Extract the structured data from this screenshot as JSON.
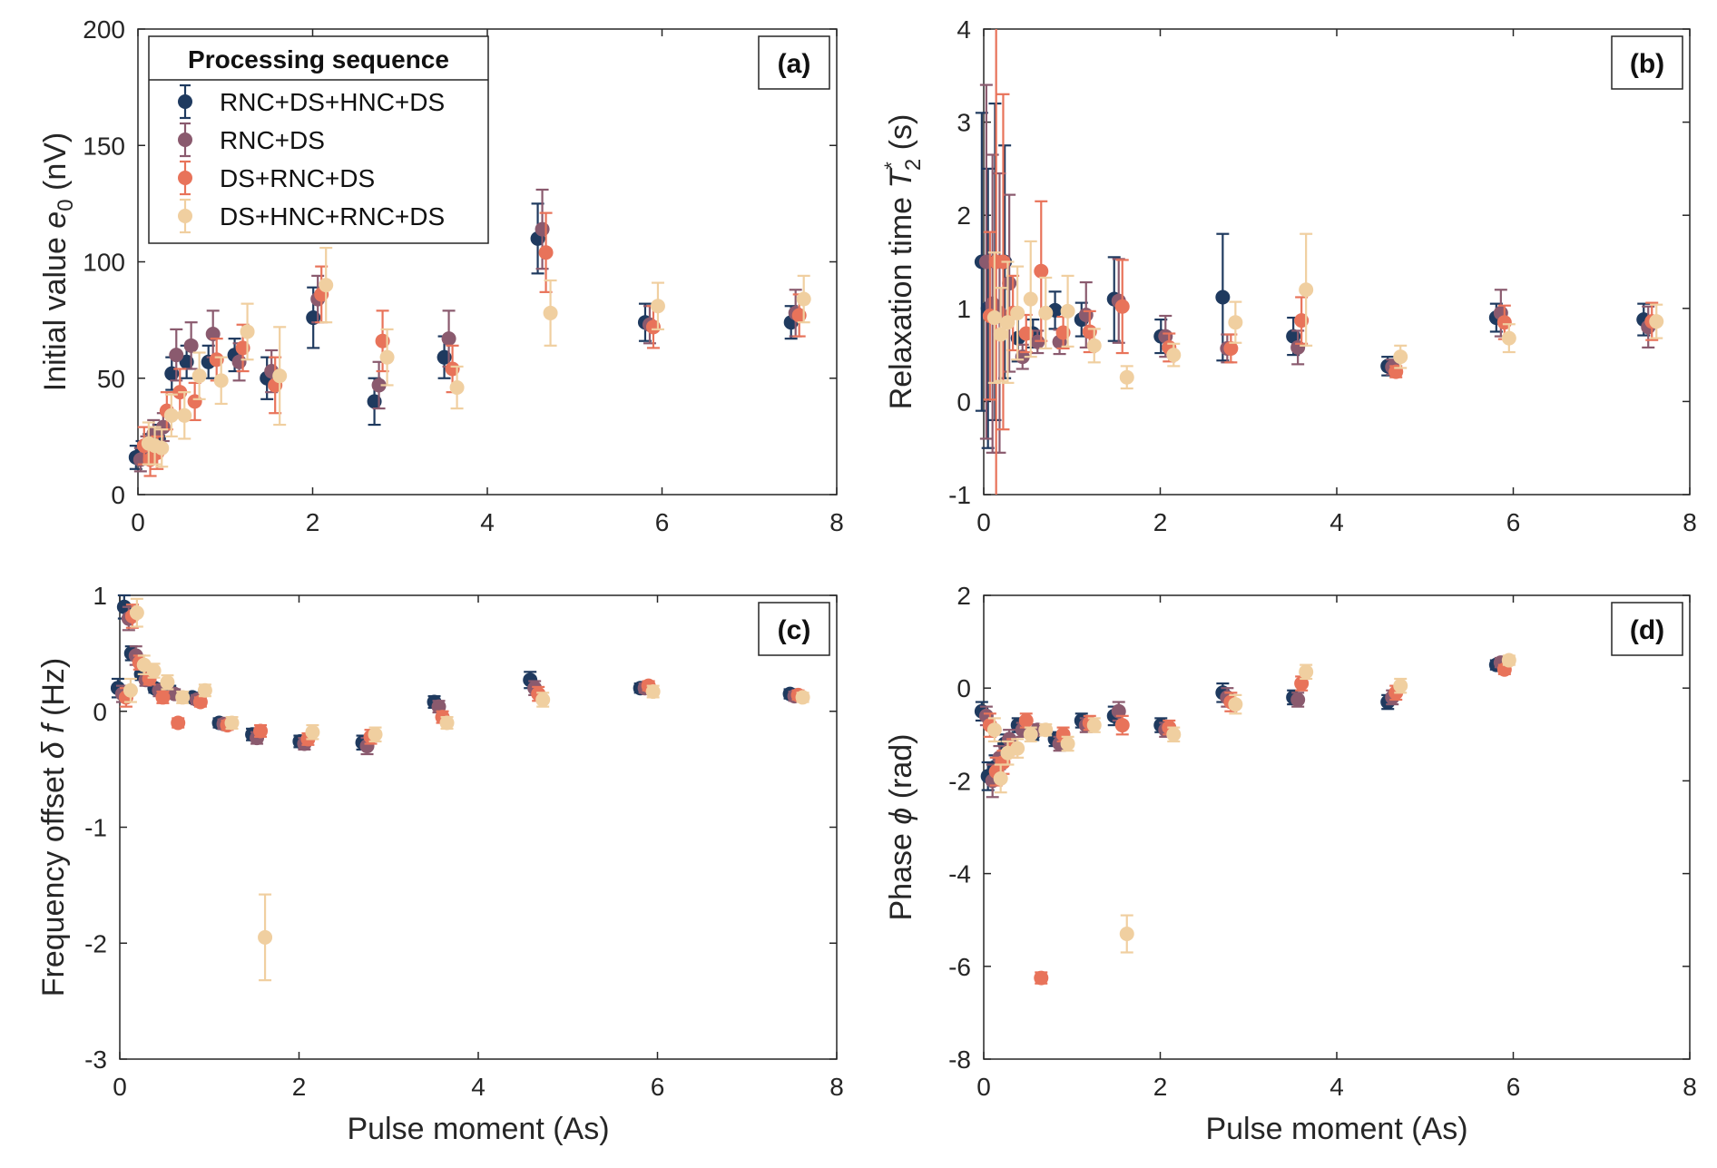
{
  "colors": [
    "#1f3a5f",
    "#8a5a6e",
    "#e8735a",
    "#f0cfa0"
  ],
  "legend": {
    "title": "Processing sequence",
    "entries": [
      "RNC+DS+HNC+DS",
      "RNC+DS",
      "DS+RNC+DS",
      "DS+HNC+RNC+DS"
    ]
  },
  "xlabel_bottom": "Pulse moment (As)",
  "chart_data": [
    {
      "type": "scatter",
      "tag": "(a)",
      "ylabel": {
        "a": "Initial value ",
        "b": "e",
        "c": "0",
        "d": "  (nV)"
      },
      "xlim": [
        0,
        8
      ],
      "ylim": [
        0,
        200
      ],
      "xticks": [
        "0",
        "2",
        "4",
        "6",
        "8"
      ],
      "yticks": [
        "0",
        "50",
        "100",
        "150",
        "200"
      ],
      "x": [
        0.05,
        0.12,
        0.2,
        0.31,
        0.46,
        0.63,
        0.88,
        1.18,
        1.55,
        2.08,
        2.78,
        3.58,
        4.65,
        5.88,
        7.55
      ],
      "series": [
        {
          "name": "RNC+DS+HNC+DS",
          "values": [
            16,
            18,
            21,
            24,
            52,
            57,
            57,
            60,
            50,
            76,
            40,
            59,
            110,
            74,
            74
          ],
          "errors": [
            5,
            5,
            5,
            6,
            7,
            7,
            7,
            7,
            9,
            13,
            10,
            9,
            15,
            8,
            7
          ]
        },
        {
          "name": "RNC+DS",
          "values": [
            15,
            20,
            26,
            29,
            60,
            64,
            69,
            57,
            53,
            84,
            47,
            67,
            114,
            73,
            78
          ],
          "errors": [
            5,
            5,
            6,
            6,
            11,
            10,
            10,
            8,
            9,
            10,
            10,
            12,
            17,
            8,
            10
          ]
        },
        {
          "name": "DS+RNC+DS",
          "values": [
            21,
            15,
            18,
            36,
            44,
            40,
            58,
            63,
            47,
            86,
            66,
            54,
            104,
            72,
            77
          ],
          "errors": [
            8,
            7,
            7,
            8,
            10,
            8,
            9,
            10,
            12,
            12,
            13,
            10,
            17,
            9,
            9
          ]
        },
        {
          "name": "DS+HNC+RNC+DS",
          "values": [
            22,
            21,
            20,
            34,
            34,
            51,
            49,
            70,
            51,
            90,
            59,
            46,
            78,
            81,
            84
          ],
          "errors": [
            9,
            8,
            8,
            9,
            10,
            10,
            10,
            12,
            21,
            16,
            12,
            9,
            14,
            10,
            10
          ]
        }
      ]
    },
    {
      "type": "scatter",
      "tag": "(b)",
      "ylabel": {
        "a": "Relaxation time  ",
        "b": "T",
        "c": "2",
        "s": "*",
        "d": "  (s)"
      },
      "xlim": [
        0,
        8
      ],
      "ylim": [
        -1,
        4
      ],
      "xticks": [
        "0",
        "2",
        "4",
        "6",
        "8"
      ],
      "yticks": [
        "-1",
        "0",
        "1",
        "2",
        "3",
        "4"
      ],
      "x": [
        0.05,
        0.12,
        0.2,
        0.31,
        0.46,
        0.63,
        0.88,
        1.18,
        1.55,
        2.08,
        2.78,
        3.58,
        4.65,
        5.88,
        7.55
      ],
      "series": [
        {
          "name": "RNC+DS+HNC+DS",
          "values": [
            1.5,
            1.0,
            1.5,
            1.5,
            0.68,
            0.73,
            0.98,
            0.88,
            1.1,
            0.7,
            1.12,
            0.7,
            0.38,
            0.9,
            0.88
          ],
          "errors": [
            1.6,
            1.5,
            1.7,
            1.25,
            0.25,
            0.15,
            0.2,
            0.18,
            0.45,
            0.18,
            0.68,
            0.2,
            0.1,
            0.15,
            0.17
          ]
        },
        {
          "name": "RNC+DS",
          "values": [
            1.5,
            1.05,
            0.95,
            1.27,
            0.48,
            0.64,
            0.64,
            0.93,
            1.08,
            0.7,
            0.57,
            0.58,
            0.37,
            0.95,
            0.8
          ],
          "errors": [
            1.9,
            1.6,
            1.5,
            0.95,
            0.13,
            0.12,
            0.13,
            0.35,
            0.45,
            0.22,
            0.15,
            0.18,
            0.08,
            0.25,
            0.22
          ]
        },
        {
          "name": "DS+RNC+DS",
          "values": [
            0.92,
            1.5,
            1.5,
            0.95,
            0.73,
            1.4,
            0.74,
            0.75,
            1.02,
            0.58,
            0.57,
            0.87,
            0.32,
            0.85,
            0.86
          ],
          "errors": [
            0.9,
            2.6,
            1.8,
            0.4,
            0.2,
            0.75,
            0.17,
            0.22,
            0.5,
            0.15,
            0.15,
            0.25,
            0.06,
            0.18,
            0.2
          ]
        },
        {
          "name": "DS+HNC+RNC+DS",
          "values": [
            0.9,
            0.72,
            0.85,
            0.95,
            1.1,
            0.95,
            0.97,
            0.6,
            0.26,
            0.5,
            0.85,
            1.2,
            0.48,
            0.68,
            0.86
          ],
          "errors": [
            0.7,
            0.5,
            0.65,
            0.5,
            0.62,
            0.38,
            0.38,
            0.18,
            0.12,
            0.12,
            0.22,
            0.6,
            0.12,
            0.15,
            0.18
          ]
        }
      ]
    },
    {
      "type": "scatter",
      "tag": "(c)",
      "ylabel": {
        "a": "Frequency offset  ",
        "b": "δ f",
        "c": "",
        "d": "  (Hz)"
      },
      "xlim": [
        0,
        8
      ],
      "ylim": [
        -3,
        1
      ],
      "xticks": [
        "0",
        "2",
        "4",
        "6",
        "8"
      ],
      "yticks": [
        "-3",
        "-2",
        "-1",
        "0",
        "1"
      ],
      "x": [
        0.05,
        0.12,
        0.2,
        0.31,
        0.46,
        0.63,
        0.88,
        1.18,
        1.55,
        2.08,
        2.78,
        3.58,
        4.65,
        5.88,
        7.55
      ],
      "series": [
        {
          "name": "RNC+DS+HNC+DS",
          "values": [
            0.2,
            0.9,
            0.5,
            0.32,
            0.2,
            0.18,
            0.12,
            -0.1,
            -0.2,
            -0.26,
            -0.27,
            0.08,
            0.27,
            0.2,
            0.15
          ],
          "errors": [
            0.08,
            0.1,
            0.06,
            0.05,
            0.04,
            0.04,
            0.04,
            0.04,
            0.05,
            0.05,
            0.06,
            0.05,
            0.07,
            0.04,
            0.04
          ]
        },
        {
          "name": "RNC+DS",
          "values": [
            0.15,
            0.8,
            0.48,
            0.27,
            0.18,
            0.15,
            0.1,
            -0.11,
            -0.23,
            -0.28,
            -0.3,
            0.04,
            0.2,
            0.2,
            0.13
          ],
          "errors": [
            0.07,
            0.1,
            0.08,
            0.05,
            0.05,
            0.04,
            0.04,
            0.04,
            0.05,
            0.05,
            0.07,
            0.05,
            0.06,
            0.04,
            0.04
          ]
        },
        {
          "name": "DS+RNC+DS",
          "values": [
            0.12,
            0.82,
            0.42,
            0.28,
            0.12,
            -0.1,
            0.08,
            -0.12,
            -0.17,
            -0.24,
            -0.22,
            -0.05,
            0.15,
            0.22,
            0.14
          ],
          "errors": [
            0.08,
            0.1,
            0.06,
            0.05,
            0.05,
            0.04,
            0.04,
            0.04,
            0.05,
            0.05,
            0.06,
            0.05,
            0.06,
            0.04,
            0.04
          ]
        },
        {
          "name": "DS+HNC+RNC+DS",
          "values": [
            0.18,
            0.85,
            0.4,
            0.35,
            0.25,
            0.12,
            0.18,
            -0.1,
            -1.95,
            -0.18,
            -0.2,
            -0.1,
            0.1,
            0.17,
            0.12
          ],
          "errors": [
            0.1,
            0.12,
            0.08,
            0.06,
            0.06,
            0.05,
            0.05,
            0.05,
            0.37,
            0.06,
            0.06,
            0.05,
            0.06,
            0.05,
            0.04
          ]
        }
      ]
    },
    {
      "type": "scatter",
      "tag": "(d)",
      "ylabel": {
        "a": "Phase  ",
        "b": "ϕ",
        "c": "",
        "d": "  (rad)"
      },
      "xlim": [
        0,
        8
      ],
      "ylim": [
        -8,
        2
      ],
      "xticks": [
        "0",
        "2",
        "4",
        "6",
        "8"
      ],
      "yticks": [
        "-8",
        "-6",
        "-4",
        "-2",
        "0",
        "2"
      ],
      "x": [
        0.05,
        0.12,
        0.2,
        0.31,
        0.46,
        0.63,
        0.88,
        1.18,
        1.55,
        2.08,
        2.78,
        3.58,
        4.65,
        5.88
      ],
      "series": [
        {
          "name": "RNC+DS+HNC+DS",
          "values": [
            -0.5,
            -1.9,
            -1.7,
            -1.2,
            -0.8,
            -1.0,
            -1.1,
            -0.7,
            -0.6,
            -0.8,
            -0.1,
            -0.2,
            -0.3,
            0.5
          ],
          "errors": [
            0.2,
            0.3,
            0.25,
            0.2,
            0.15,
            0.12,
            0.15,
            0.15,
            0.2,
            0.15,
            0.2,
            0.15,
            0.15,
            0.1
          ]
        },
        {
          "name": "RNC+DS",
          "values": [
            -0.6,
            -2.0,
            -1.5,
            -1.1,
            -0.9,
            -0.9,
            -1.2,
            -0.8,
            -0.5,
            -0.9,
            -0.2,
            -0.25,
            -0.2,
            0.55
          ],
          "errors": [
            0.2,
            0.35,
            0.25,
            0.2,
            0.15,
            0.12,
            0.15,
            0.15,
            0.2,
            0.15,
            0.2,
            0.15,
            0.15,
            0.1
          ]
        },
        {
          "name": "DS+RNC+DS",
          "values": [
            -0.8,
            -1.8,
            -1.6,
            -1.3,
            -0.7,
            -6.25,
            -1.0,
            -0.75,
            -0.8,
            -0.85,
            -0.3,
            0.1,
            -0.1,
            0.4
          ],
          "errors": [
            0.25,
            0.3,
            0.25,
            0.2,
            0.15,
            0.12,
            0.15,
            0.15,
            0.2,
            0.15,
            0.2,
            0.15,
            0.15,
            0.1
          ]
        },
        {
          "name": "DS+HNC+RNC+DS",
          "values": [
            -0.9,
            -1.95,
            -1.4,
            -1.3,
            -1.0,
            -0.9,
            -1.2,
            -0.8,
            -5.3,
            -1.0,
            -0.35,
            0.35,
            0.05,
            0.6
          ],
          "errors": [
            0.25,
            0.3,
            0.25,
            0.2,
            0.15,
            0.12,
            0.15,
            0.15,
            0.4,
            0.15,
            0.2,
            0.15,
            0.15,
            0.1
          ]
        }
      ]
    }
  ]
}
